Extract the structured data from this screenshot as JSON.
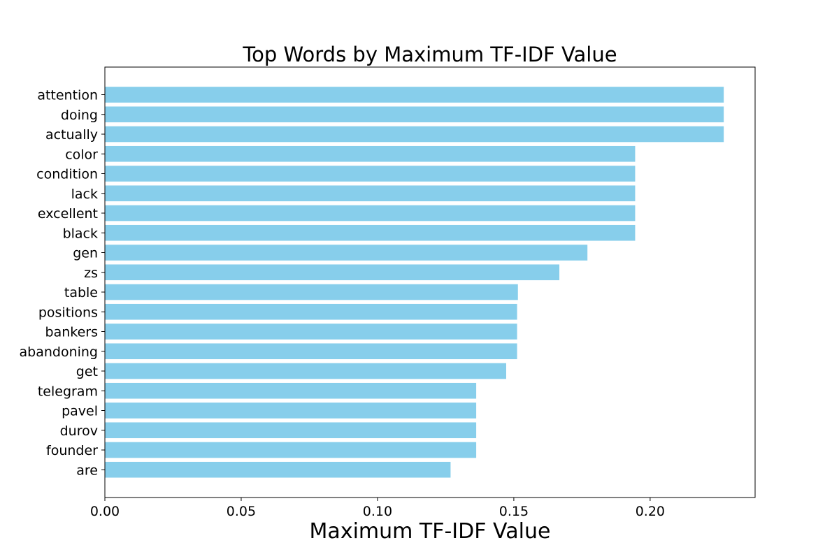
{
  "chart_data": {
    "type": "bar",
    "orientation": "horizontal",
    "title": "Top Words by Maximum TF-IDF Value",
    "xlabel": "Maximum TF-IDF Value",
    "ylabel": "",
    "xlim": [
      0,
      0.2385
    ],
    "x_ticks": [
      "0.00",
      "0.05",
      "0.10",
      "0.15",
      "0.20"
    ],
    "bar_color": "#87CEEB",
    "grid": false,
    "categories": [
      "attention",
      "doing",
      "actually",
      "color",
      "condition",
      "lack",
      "excellent",
      "black",
      "gen",
      "zs",
      "table",
      "positions",
      "bankers",
      "abandoning",
      "get",
      "telegram",
      "pavel",
      "durov",
      "founder",
      "are"
    ],
    "values": [
      0.227,
      0.227,
      0.227,
      0.1945,
      0.1945,
      0.1945,
      0.1945,
      0.1945,
      0.177,
      0.1667,
      0.1515,
      0.1512,
      0.1512,
      0.1512,
      0.1472,
      0.1362,
      0.1362,
      0.1362,
      0.1362,
      0.1268
    ]
  }
}
